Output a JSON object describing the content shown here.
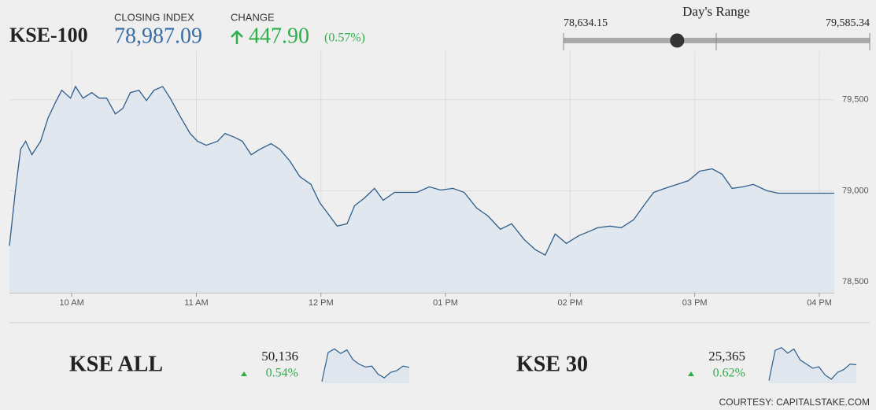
{
  "header": {
    "index_name": "KSE-100",
    "closing_label": "CLOSING INDEX",
    "closing_index": {
      "value": 78987.09,
      "label": "78,987.09"
    },
    "change_label": "CHANGE",
    "change": "447.90",
    "change_pct": "(0.57%)"
  },
  "range": {
    "title": "Day's Range",
    "low": {
      "value": 78634.15,
      "label": "78,634.15"
    },
    "high": {
      "value": 79585.34,
      "label": "79,585.34"
    }
  },
  "chart_data": {
    "type": "line",
    "color": "#2e5d8a",
    "fill": "#dfe6ee",
    "x": [
      9.5,
      9.55,
      9.59,
      9.63,
      9.68,
      9.75,
      9.81,
      9.87,
      9.92,
      9.99,
      10.03,
      10.09,
      10.16,
      10.22,
      10.28,
      10.35,
      10.41,
      10.47,
      10.54,
      10.6,
      10.66,
      10.73,
      10.79,
      10.87,
      10.95,
      11.01,
      11.08,
      11.17,
      11.23,
      11.31,
      11.37,
      11.44,
      11.51,
      11.6,
      11.67,
      11.75,
      11.83,
      11.92,
      11.99,
      12.07,
      12.13,
      12.21,
      12.27,
      12.35,
      12.43,
      12.5,
      12.59,
      12.68,
      12.77,
      12.87,
      12.96,
      13.06,
      13.15,
      13.25,
      13.34,
      13.44,
      13.53,
      13.63,
      13.72,
      13.8,
      13.88,
      13.97,
      14.07,
      14.15,
      14.22,
      14.32,
      14.41,
      14.51,
      14.59,
      14.67,
      14.76,
      14.86,
      14.95,
      15.04,
      15.14,
      15.22,
      15.3,
      15.39,
      15.47,
      15.58,
      15.67,
      16.12
    ],
    "values": [
      78698,
      79013,
      79228,
      79272,
      79198,
      79272,
      79401,
      79487,
      79552,
      79509,
      79573,
      79509,
      79539,
      79509,
      79509,
      79422,
      79453,
      79539,
      79552,
      79496,
      79552,
      79573,
      79509,
      79409,
      79315,
      79272,
      79250,
      79272,
      79315,
      79293,
      79272,
      79198,
      79228,
      79259,
      79228,
      79164,
      79078,
      79035,
      78935,
      78862,
      78806,
      78819,
      78918,
      78961,
      79013,
      78948,
      78991,
      78991,
      78991,
      79022,
      79004,
      79013,
      78991,
      78905,
      78862,
      78789,
      78819,
      78733,
      78677,
      78647,
      78763,
      78711,
      78754,
      78776,
      78797,
      78806,
      78797,
      78841,
      78918,
      78991,
      79013,
      79035,
      79056,
      79108,
      79121,
      79091,
      79013,
      79022,
      79035,
      79000,
      78987,
      78987
    ],
    "xlim": [
      9.5,
      16.12
    ],
    "ylim": [
      78440,
      79767
    ],
    "xticks": [
      {
        "value": 10,
        "label": "10 AM"
      },
      {
        "value": 11,
        "label": "11 AM"
      },
      {
        "value": 12,
        "label": "12 PM"
      },
      {
        "value": 13,
        "label": "01 PM"
      },
      {
        "value": 14,
        "label": "02 PM"
      },
      {
        "value": 15,
        "label": "03 PM"
      },
      {
        "value": 16,
        "label": "04 PM"
      }
    ],
    "yticks": [
      {
        "value": 78500,
        "label": "78,500"
      },
      {
        "value": 79000,
        "label": "79,000"
      },
      {
        "value": 79500,
        "label": "79,500"
      }
    ],
    "grid": true
  },
  "minis": [
    {
      "name": "KSE ALL",
      "value": "50,136",
      "change": "0.54%",
      "sparkline": {
        "values": [
          49980,
          50300,
          50340,
          50290,
          50330,
          50220,
          50170,
          50140,
          50150,
          50060,
          50020,
          50080,
          50100,
          50150,
          50136
        ],
        "ylim": [
          49960,
          50370
        ]
      }
    },
    {
      "name": "KSE 30",
      "value": "25,365",
      "change": "0.62%",
      "sparkline": {
        "values": [
          25250,
          25470,
          25490,
          25450,
          25480,
          25400,
          25370,
          25340,
          25350,
          25290,
          25260,
          25310,
          25330,
          25370,
          25365
        ],
        "ylim": [
          25230,
          25500
        ]
      }
    }
  ],
  "footer": "COURTESY: CAPITALSTAKE.COM"
}
